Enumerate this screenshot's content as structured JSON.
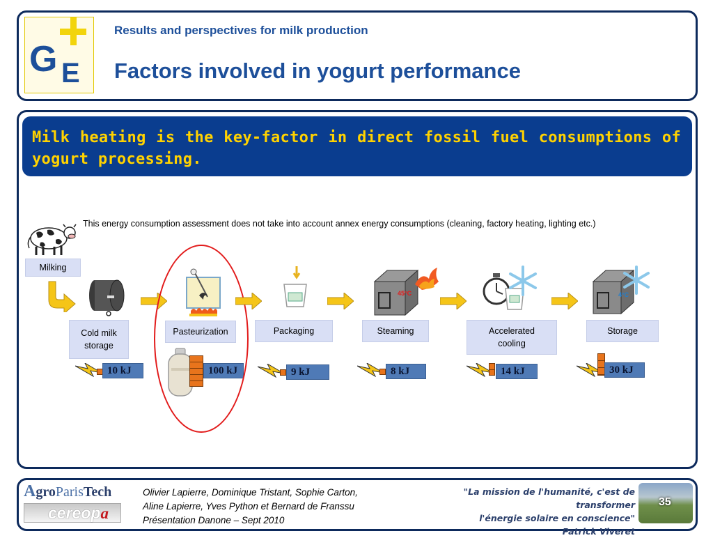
{
  "header": {
    "subtitle": "Results and perspectives for milk production",
    "title": "Factors involved in yogurt performance"
  },
  "key_message": "Milk heating is the key-factor in direct fossil fuel consumptions of yogurt processing.",
  "note": "This energy consumption assessment does not take into account annex energy consumptions (cleaning, factory heating, lighting etc.)",
  "steps": [
    {
      "label": "Milking"
    },
    {
      "label": "Cold milk storage",
      "energy": "10 kJ"
    },
    {
      "label": "Pasteurization",
      "energy": "100 kJ"
    },
    {
      "label": "Packaging",
      "energy": "9 kJ"
    },
    {
      "label": "Steaming",
      "energy": "8 kJ",
      "temperature": "45°C"
    },
    {
      "label": "Accelerated cooling",
      "energy": "14 kJ"
    },
    {
      "label": "Storage",
      "energy": "30 kJ",
      "temperature": "4°C"
    }
  ],
  "footer": {
    "logo1_a": "gro",
    "logo1_b": "Paris",
    "logo1_c": "Tech",
    "logo2": "cereop",
    "logo2_a": "a",
    "authors_line1": "Olivier Lapierre, Dominique Tristant, Sophie Carton,",
    "authors_line2": "Aline Lapierre, Yves Python et Bernard de Franssu",
    "authors_line3": "Présentation Danone – Sept 2010",
    "quote_line1": "\"La mission de l'humanité, c'est de transformer",
    "quote_line2": "l'énergie solaire en conscience\"",
    "quote_author": "Patrick Viveret",
    "page_number": "35"
  },
  "colors": {
    "navy": "#0d2a5c",
    "banner": "#0a3d8f",
    "banner_text": "#ffd200",
    "highlight": "#e21b1b",
    "energy_box": "#4f7ab6",
    "label_box": "#d9dff5",
    "brick": "#e8741c",
    "arrow": "#f5c518"
  },
  "icons": [
    "cow-icon",
    "milk-tank-icon",
    "pasteurizer-icon",
    "gas-cylinder-icon",
    "yogurt-cup-icon",
    "steam-chamber-icon",
    "stopwatch-icon",
    "snowflake-icon",
    "cold-chamber-icon",
    "lightning-icon",
    "brick-stack-icon",
    "flow-arrow-icon"
  ]
}
